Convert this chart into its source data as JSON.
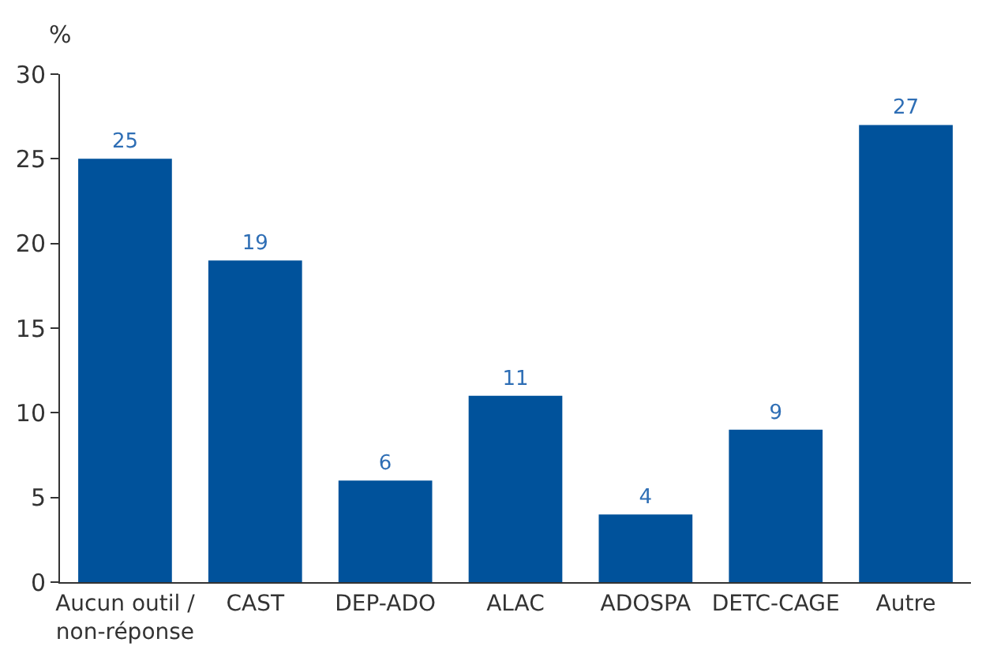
{
  "chart_data": {
    "type": "bar",
    "ylabel": "%",
    "categories": [
      "Aucun outil / non-réponse",
      "CAST",
      "DEP-ADO",
      "ALAC",
      "ADOSPA",
      "DETC-CAGE",
      "Autre"
    ],
    "values": [
      25,
      19,
      6,
      11,
      4,
      9,
      27
    ],
    "color": "#00529b",
    "ylim": [
      0,
      30
    ],
    "yticks": [
      0,
      5,
      10,
      15,
      20,
      25,
      30
    ],
    "grid": false,
    "data_labels": true
  }
}
